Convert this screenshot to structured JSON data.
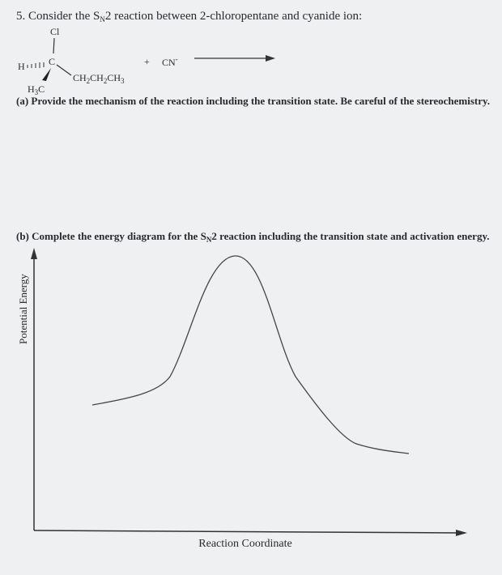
{
  "header": {
    "prefix": "5. Consider the S",
    "subscript": "N",
    "suffix": "2 reaction between 2-chloropentane and cyanide ion:"
  },
  "molecule": {
    "leaving_group": "Cl",
    "hydrogen": "H",
    "carbon": "C",
    "chain": [
      "CH",
      "2",
      "CH",
      "2",
      "CH",
      "3"
    ],
    "methyl": [
      "H",
      "3",
      "C"
    ],
    "plus": "+",
    "nucleophile": "CN",
    "charge": "-"
  },
  "part_a": {
    "text": "(a) Provide the mechanism of the reaction including the transition state. Be careful of the stereochemistry."
  },
  "part_b": {
    "prefix": "(b) Complete the energy diagram for the S",
    "subscript": "N",
    "suffix": "2 reaction including the transition state and activation energy."
  },
  "diagram": {
    "y_label": "Potential Energy",
    "x_label": "Reaction Coordinate"
  }
}
